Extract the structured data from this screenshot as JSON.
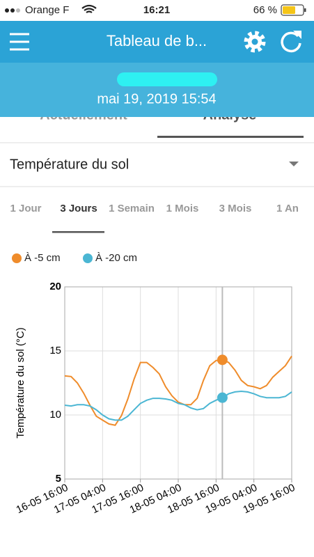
{
  "status_bar": {
    "carrier": "Orange F",
    "time": "16:21",
    "battery": "66 %"
  },
  "header": {
    "title": "Tableau de b..."
  },
  "banner": {
    "date": "mai 19, 2019 15:54"
  },
  "tabs": [
    "Actuellement",
    "Analyse"
  ],
  "dropdown": {
    "label": "Température du sol"
  },
  "periods": [
    "1 Jour",
    "3 Jours",
    "1 Semain",
    "1 Mois",
    "3 Mois",
    "1 An"
  ],
  "chart_data": {
    "type": "line",
    "y_label": "Température du sol (°C)",
    "x": [
      "16-05 16:00",
      "16-05 18:00",
      "16-05 20:00",
      "16-05 22:00",
      "17-05 00:00",
      "17-05 02:00",
      "17-05 04:00",
      "17-05 06:00",
      "17-05 08:00",
      "17-05 10:00",
      "17-05 12:00",
      "17-05 14:00",
      "17-05 16:00",
      "17-05 18:00",
      "17-05 20:00",
      "17-05 22:00",
      "18-05 00:00",
      "18-05 02:00",
      "18-05 04:00",
      "18-05 06:00",
      "18-05 08:00",
      "18-05 10:00",
      "18-05 12:00",
      "18-05 14:00",
      "18-05 16:00",
      "18-05 18:00",
      "18-05 20:00",
      "18-05 22:00",
      "19-05 00:00",
      "19-05 02:00",
      "19-05 04:00",
      "19-05 06:00",
      "19-05 08:00",
      "19-05 10:00",
      "19-05 12:00",
      "19-05 14:00",
      "19-05 16:00"
    ],
    "series": [
      {
        "name": "À -5 cm",
        "color": "#ef8c2b",
        "values": [
          13.05,
          13.0,
          12.5,
          11.7,
          10.76,
          9.9,
          9.6,
          9.3,
          9.2,
          9.95,
          11.25,
          12.8,
          14.1,
          14.1,
          13.7,
          13.2,
          12.2,
          11.5,
          11.0,
          10.8,
          10.8,
          11.3,
          12.7,
          13.85,
          14.25,
          14.3,
          14.1,
          13.5,
          12.7,
          12.3,
          12.2,
          12.05,
          12.3,
          12.95,
          13.4,
          13.85,
          14.6
        ]
      },
      {
        "name": "À -20 cm",
        "color": "#4bb6d3",
        "values": [
          10.76,
          10.7,
          10.8,
          10.8,
          10.7,
          10.4,
          10.0,
          9.7,
          9.6,
          9.6,
          9.9,
          10.4,
          10.9,
          11.15,
          11.3,
          11.3,
          11.25,
          11.15,
          10.9,
          10.8,
          10.55,
          10.4,
          10.5,
          10.9,
          11.15,
          11.35,
          11.65,
          11.8,
          11.85,
          11.8,
          11.65,
          11.45,
          11.35,
          11.35,
          11.35,
          11.45,
          11.8
        ]
      }
    ],
    "xlim": [
      "16-05 16:00",
      "19-05 16:00"
    ],
    "xticks": [
      "16-05 16:00",
      "17-05 04:00",
      "17-05 16:00",
      "18-05 04:00",
      "18-05 16:00",
      "19-05 04:00",
      "19-05 16:00"
    ],
    "ylim": [
      5,
      20
    ],
    "yticks": [
      5,
      10,
      15,
      20
    ],
    "grid": true,
    "cursor": "18-05 18:00"
  }
}
